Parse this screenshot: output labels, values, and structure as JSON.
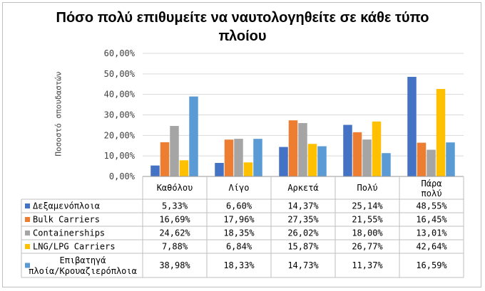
{
  "chart_data": {
    "type": "bar",
    "title": "Πόσο πολύ επιθυμείτε να ναυτολογηθείτε σε κάθε τύπο πλοίου",
    "ylabel": "Ποσοστό σπουδαστών",
    "xlabel": "",
    "ylim": [
      0,
      60
    ],
    "yticks": [
      "0,00%",
      "10,00%",
      "20,00%",
      "30,00%",
      "40,00%",
      "50,00%",
      "60,00%"
    ],
    "categories": [
      "Καθόλου",
      "Λίγο",
      "Αρκετά",
      "Πολύ",
      "Πάρα πολύ"
    ],
    "grid": true,
    "legend_placement": "data-table",
    "series": [
      {
        "name": "Δεξαμενόπλοια",
        "color": "#4472c4",
        "values": [
          5.33,
          6.6,
          14.37,
          25.14,
          48.55
        ],
        "labels": [
          "5,33%",
          "6,60%",
          "14,37%",
          "25,14%",
          "48,55%"
        ]
      },
      {
        "name": "Bulk Carriers",
        "color": "#ed7d31",
        "values": [
          16.69,
          17.96,
          27.35,
          21.55,
          16.45
        ],
        "labels": [
          "16,69%",
          "17,96%",
          "27,35%",
          "21,55%",
          "16,45%"
        ]
      },
      {
        "name": "Containerships",
        "color": "#a5a5a5",
        "values": [
          24.62,
          18.35,
          26.02,
          18.0,
          13.01
        ],
        "labels": [
          "24,62%",
          "18,35%",
          "26,02%",
          "18,00%",
          "13,01%"
        ]
      },
      {
        "name": "LNG/LPG Carriers",
        "color": "#ffc000",
        "values": [
          7.88,
          6.84,
          15.87,
          26.77,
          42.64
        ],
        "labels": [
          "7,88%",
          "6,84%",
          "15,87%",
          "26,77%",
          "42,64%"
        ]
      },
      {
        "name": "Επιβατηγά πλοία/Κρουαζιερόπλοια",
        "color": "#5b9bd5",
        "values": [
          38.98,
          18.33,
          14.73,
          11.37,
          16.59
        ],
        "labels": [
          "38,98%",
          "18,33%",
          "14,73%",
          "11,37%",
          "16,59%"
        ]
      }
    ]
  }
}
